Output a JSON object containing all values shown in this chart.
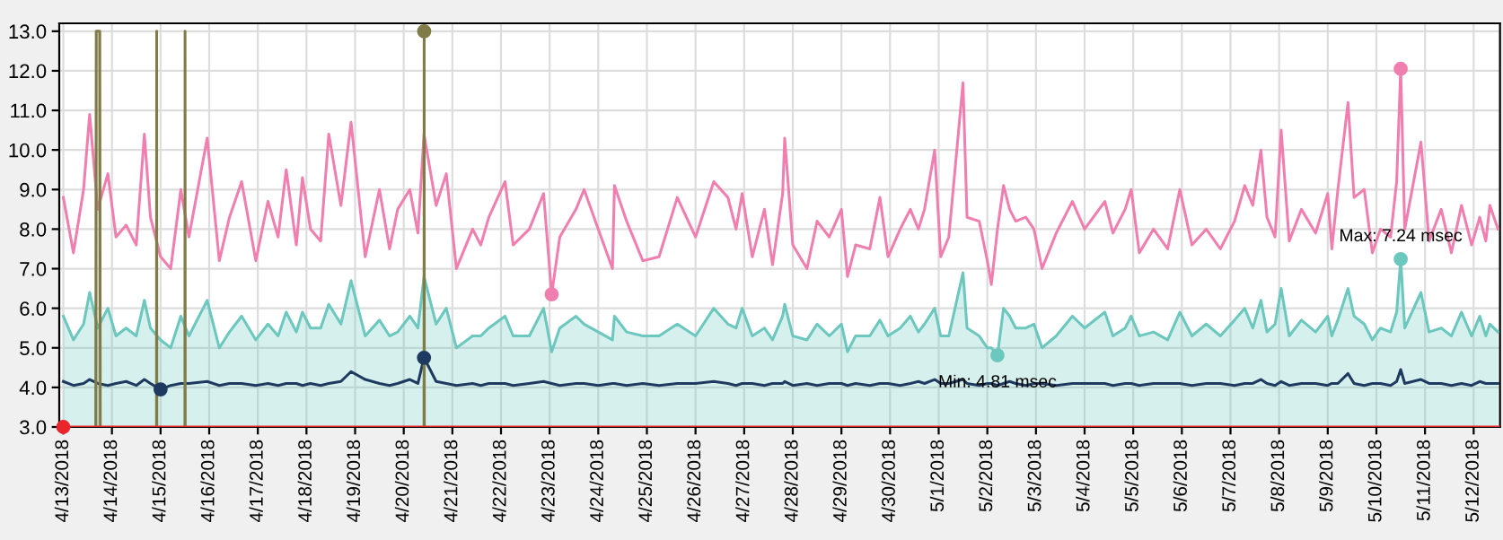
{
  "chart_data": {
    "type": "line",
    "xlim": [
      "2018-04-12T22:00",
      "2018-05-12T13:00"
    ],
    "ylim": [
      3,
      13.2
    ],
    "yticks": [
      {
        "value": 3,
        "label": "3.0"
      },
      {
        "value": 4,
        "label": "4.0"
      },
      {
        "value": 5,
        "label": "5.0"
      },
      {
        "value": 6,
        "label": "6.0"
      },
      {
        "value": 7,
        "label": "7.0"
      },
      {
        "value": 8,
        "label": "8.0"
      },
      {
        "value": 9,
        "label": "9.0"
      },
      {
        "value": 10,
        "label": "10.0"
      },
      {
        "value": 11,
        "label": "11.0"
      },
      {
        "value": 12,
        "label": "12.0"
      },
      {
        "value": 13,
        "label": "13.0"
      }
    ],
    "xticks": [
      {
        "value": "2018-04-13",
        "label": "4/13/2018"
      },
      {
        "value": "2018-04-14",
        "label": "4/14/2018"
      },
      {
        "value": "2018-04-15",
        "label": "4/15/2018"
      },
      {
        "value": "2018-04-16",
        "label": "4/16/2018"
      },
      {
        "value": "2018-04-17",
        "label": "4/17/2018"
      },
      {
        "value": "2018-04-18",
        "label": "4/18/2018"
      },
      {
        "value": "2018-04-19",
        "label": "4/19/2018"
      },
      {
        "value": "2018-04-20",
        "label": "4/20/2018"
      },
      {
        "value": "2018-04-21",
        "label": "4/21/2018"
      },
      {
        "value": "2018-04-22",
        "label": "4/22/2018"
      },
      {
        "value": "2018-04-23",
        "label": "4/23/2018"
      },
      {
        "value": "2018-04-24",
        "label": "4/24/2018"
      },
      {
        "value": "2018-04-25",
        "label": "4/25/2018"
      },
      {
        "value": "2018-04-26",
        "label": "4/26/2018"
      },
      {
        "value": "2018-04-27",
        "label": "4/27/2018"
      },
      {
        "value": "2018-04-28",
        "label": "4/28/2018"
      },
      {
        "value": "2018-04-29",
        "label": "4/29/2018"
      },
      {
        "value": "2018-04-30",
        "label": "4/30/2018"
      },
      {
        "value": "2018-05-01",
        "label": "5/1/2018"
      },
      {
        "value": "2018-05-02",
        "label": "5/2/2018"
      },
      {
        "value": "2018-05-03",
        "label": "5/3/2018"
      },
      {
        "value": "2018-05-04",
        "label": "5/4/2018"
      },
      {
        "value": "2018-05-05",
        "label": "5/5/2018"
      },
      {
        "value": "2018-05-06",
        "label": "5/6/2018"
      },
      {
        "value": "2018-05-07",
        "label": "5/7/2018"
      },
      {
        "value": "2018-05-08",
        "label": "5/8/2018"
      },
      {
        "value": "2018-05-09",
        "label": "5/9/2018"
      },
      {
        "value": "2018-05-10",
        "label": "5/10/2018"
      },
      {
        "value": "2018-05-11",
        "label": "5/11/2018"
      },
      {
        "value": "2018-05-12",
        "label": "5/12/2018"
      }
    ],
    "grid": true,
    "x": [
      "2018-04-13T00:00",
      "2018-04-13T05:00",
      "2018-04-13T10:00",
      "2018-04-13T13:00",
      "2018-04-13T17:00",
      "2018-04-13T22:00",
      "2018-04-14T02:00",
      "2018-04-14T07:00",
      "2018-04-14T12:00",
      "2018-04-14T16:00",
      "2018-04-14T19:00",
      "2018-04-15T00:00",
      "2018-04-15T05:00",
      "2018-04-15T10:00",
      "2018-04-15T14:00",
      "2018-04-15T23:00",
      "2018-04-16T05:00",
      "2018-04-16T10:00",
      "2018-04-16T16:00",
      "2018-04-16T23:00",
      "2018-04-17T05:00",
      "2018-04-17T10:00",
      "2018-04-17T14:00",
      "2018-04-17T19:00",
      "2018-04-17T22:00",
      "2018-04-18T02:00",
      "2018-04-18T07:00",
      "2018-04-18T11:00",
      "2018-04-18T17:00",
      "2018-04-18T22:00",
      "2018-04-19T05:00",
      "2018-04-19T12:00",
      "2018-04-19T17:00",
      "2018-04-19T21:00",
      "2018-04-20T03:00",
      "2018-04-20T07:00",
      "2018-04-20T10:00",
      "2018-04-20T16:00",
      "2018-04-20T21:00",
      "2018-04-21T02:00",
      "2018-04-21T10:00",
      "2018-04-21T14:00",
      "2018-04-21T18:00",
      "2018-04-22T02:00",
      "2018-04-22T06:00",
      "2018-04-22T14:00",
      "2018-04-22T21:00",
      "2018-04-23T01:00",
      "2018-04-23T05:00",
      "2018-04-23T13:00",
      "2018-04-23T17:00",
      "2018-04-24T00:00",
      "2018-04-24T07:00",
      "2018-04-24T08:00",
      "2018-04-24T14:00",
      "2018-04-24T22:00",
      "2018-04-25T06:00",
      "2018-04-25T15:00",
      "2018-04-26T00:00",
      "2018-04-26T09:00",
      "2018-04-26T16:00",
      "2018-04-26T20:00",
      "2018-04-26T23:00",
      "2018-04-27T04:00",
      "2018-04-27T10:00",
      "2018-04-27T14:00",
      "2018-04-27T19:00",
      "2018-04-27T20:00",
      "2018-04-28T00:00",
      "2018-04-28T07:00",
      "2018-04-28T12:00",
      "2018-04-28T18:00",
      "2018-04-29T00:00",
      "2018-04-29T03:00",
      "2018-04-29T07:00",
      "2018-04-29T14:00",
      "2018-04-29T19:00",
      "2018-04-29T23:00",
      "2018-04-30T05:00",
      "2018-04-30T10:00",
      "2018-04-30T14:00",
      "2018-04-30T17:00",
      "2018-04-30T22:00",
      "2018-05-01T01:00",
      "2018-05-01T05:00",
      "2018-05-01T12:00",
      "2018-05-01T14:00",
      "2018-05-01T20:00",
      "2018-05-02T00:00",
      "2018-05-02T02:00",
      "2018-05-02T05:00",
      "2018-05-02T08:00",
      "2018-05-02T11:00",
      "2018-05-02T14:00",
      "2018-05-02T19:00",
      "2018-05-02T23:00",
      "2018-05-03T03:00",
      "2018-05-03T10:00",
      "2018-05-03T18:00",
      "2018-05-04T00:00",
      "2018-05-04T10:00",
      "2018-05-04T14:00",
      "2018-05-04T20:00",
      "2018-05-04T23:00",
      "2018-05-05T03:00",
      "2018-05-05T10:00",
      "2018-05-05T17:00",
      "2018-05-05T23:00",
      "2018-05-06T05:00",
      "2018-05-06T12:00",
      "2018-05-06T19:00",
      "2018-05-07T02:00",
      "2018-05-07T07:00",
      "2018-05-07T11:00",
      "2018-05-07T15:00",
      "2018-05-07T18:00",
      "2018-05-07T22:00",
      "2018-05-08T01:00",
      "2018-05-08T05:00",
      "2018-05-08T11:00",
      "2018-05-08T18:00",
      "2018-05-09T00:00",
      "2018-05-09T02:00",
      "2018-05-09T05:00",
      "2018-05-09T10:00",
      "2018-05-09T13:00",
      "2018-05-09T18:00",
      "2018-05-09T22:00",
      "2018-05-10T02:00",
      "2018-05-10T07:00",
      "2018-05-10T10:00",
      "2018-05-10T12:00",
      "2018-05-10T14:00",
      "2018-05-10T22:00",
      "2018-05-11T02:00",
      "2018-05-11T08:00",
      "2018-05-11T13:00",
      "2018-05-11T18:00",
      "2018-05-11T23:00",
      "2018-05-12T03:00",
      "2018-05-12T06:00",
      "2018-05-12T08:00",
      "2018-05-12T12:00"
    ],
    "series": [
      {
        "type": "area",
        "color": "#6cc8be",
        "values": [
          5.8,
          5.2,
          5.6,
          6.4,
          5.5,
          6.0,
          5.3,
          5.5,
          5.3,
          6.2,
          5.5,
          5.2,
          5.0,
          5.8,
          5.3,
          6.2,
          5.0,
          5.4,
          5.8,
          5.2,
          5.6,
          5.3,
          5.9,
          5.4,
          5.9,
          5.5,
          5.5,
          6.1,
          5.6,
          6.7,
          5.3,
          5.7,
          5.3,
          5.4,
          5.8,
          5.5,
          6.8,
          5.6,
          6.0,
          5.0,
          5.3,
          5.3,
          5.5,
          5.8,
          5.3,
          5.3,
          6.0,
          4.9,
          5.5,
          5.8,
          5.6,
          5.4,
          5.2,
          5.8,
          5.4,
          5.3,
          5.3,
          5.6,
          5.3,
          6.0,
          5.6,
          5.5,
          6.0,
          5.3,
          5.5,
          5.2,
          5.8,
          6.1,
          5.3,
          5.2,
          5.6,
          5.3,
          5.6,
          4.9,
          5.3,
          5.3,
          5.7,
          5.3,
          5.5,
          5.8,
          5.4,
          5.6,
          6.0,
          5.3,
          5.3,
          6.9,
          5.5,
          5.3,
          5.0,
          5.0,
          4.81,
          6.0,
          5.8,
          5.5,
          5.5,
          5.6,
          5.0,
          5.3,
          5.8,
          5.5,
          5.9,
          5.3,
          5.5,
          5.8,
          5.3,
          5.4,
          5.2,
          5.9,
          5.3,
          5.6,
          5.3,
          5.7,
          6.0,
          5.5,
          6.2,
          5.4,
          5.6,
          6.5,
          5.3,
          5.7,
          5.4,
          5.8,
          5.3,
          5.7,
          6.5,
          5.8,
          5.6,
          5.2,
          5.5,
          5.4,
          5.9,
          7.24,
          5.5,
          6.4,
          5.4,
          5.5,
          5.3,
          5.9,
          5.3,
          5.8,
          5.3,
          5.6,
          5.4
        ]
      },
      {
        "color": "#f07fb0",
        "values": [
          8.8,
          7.4,
          9.0,
          10.9,
          8.5,
          9.4,
          7.8,
          8.1,
          7.6,
          10.4,
          8.3,
          7.3,
          7.0,
          9.0,
          7.8,
          10.3,
          7.2,
          8.3,
          9.2,
          7.2,
          8.7,
          7.8,
          9.5,
          7.6,
          9.3,
          8.0,
          7.7,
          10.4,
          8.6,
          10.7,
          7.3,
          9.0,
          7.5,
          8.5,
          9.0,
          7.9,
          10.4,
          8.6,
          9.4,
          7.0,
          8.0,
          7.6,
          8.3,
          9.2,
          7.6,
          8.0,
          8.9,
          6.35,
          7.8,
          8.5,
          9.0,
          8.0,
          7.0,
          9.1,
          8.2,
          7.2,
          7.3,
          8.8,
          7.8,
          9.2,
          8.8,
          8.0,
          8.9,
          7.3,
          8.5,
          7.1,
          8.9,
          10.3,
          7.6,
          7.0,
          8.2,
          7.8,
          8.5,
          6.8,
          7.6,
          7.5,
          8.8,
          7.3,
          8.0,
          8.5,
          8.0,
          8.5,
          10.0,
          7.3,
          7.8,
          11.7,
          8.3,
          8.2,
          7.2,
          6.6,
          8.0,
          9.1,
          8.5,
          8.2,
          8.3,
          8.0,
          7.0,
          7.9,
          8.7,
          8.0,
          8.7,
          7.9,
          8.5,
          9.0,
          7.4,
          8.0,
          7.5,
          9.0,
          7.6,
          8.0,
          7.5,
          8.2,
          9.1,
          8.6,
          10.0,
          8.3,
          7.8,
          10.5,
          7.7,
          8.5,
          7.9,
          8.9,
          7.5,
          9.0,
          11.2,
          8.8,
          9.0,
          7.4,
          8.0,
          7.8,
          9.2,
          12.05,
          8.0,
          10.2,
          7.7,
          8.5,
          7.4,
          8.6,
          7.6,
          8.3,
          7.7,
          8.6,
          8.0
        ]
      },
      {
        "color": "#1f3a60",
        "values": [
          4.15,
          4.05,
          4.1,
          4.2,
          4.1,
          4.05,
          4.1,
          4.15,
          4.05,
          4.2,
          4.1,
          3.95,
          4.05,
          4.1,
          4.1,
          4.15,
          4.05,
          4.1,
          4.1,
          4.05,
          4.1,
          4.05,
          4.1,
          4.1,
          4.05,
          4.1,
          4.05,
          4.1,
          4.15,
          4.4,
          4.2,
          4.1,
          4.05,
          4.1,
          4.2,
          4.1,
          4.75,
          4.15,
          4.1,
          4.05,
          4.1,
          4.05,
          4.1,
          4.1,
          4.05,
          4.1,
          4.15,
          4.1,
          4.05,
          4.1,
          4.1,
          4.05,
          4.1,
          4.1,
          4.05,
          4.1,
          4.05,
          4.1,
          4.1,
          4.15,
          4.1,
          4.05,
          4.1,
          4.1,
          4.05,
          4.1,
          4.1,
          4.15,
          4.05,
          4.1,
          4.05,
          4.1,
          4.1,
          4.05,
          4.1,
          4.05,
          4.1,
          4.1,
          4.05,
          4.1,
          4.15,
          4.1,
          4.2,
          4.1,
          4.1,
          4.2,
          4.1,
          4.05,
          4.1,
          4.1,
          4.05,
          4.1,
          4.15,
          4.1,
          4.05,
          4.1,
          4.1,
          4.05,
          4.1,
          4.1,
          4.1,
          4.05,
          4.1,
          4.1,
          4.05,
          4.1,
          4.1,
          4.1,
          4.05,
          4.1,
          4.1,
          4.05,
          4.1,
          4.1,
          4.2,
          4.1,
          4.05,
          4.15,
          4.05,
          4.1,
          4.1,
          4.05,
          4.1,
          4.1,
          4.35,
          4.1,
          4.05,
          4.1,
          4.1,
          4.05,
          4.15,
          4.45,
          4.1,
          4.2,
          4.1,
          4.1,
          4.05,
          4.1,
          4.05,
          4.15,
          4.1,
          4.1,
          4.1
        ]
      },
      {
        "type": "area",
        "color": "#807c48",
        "x": [
          "2018-04-13T16:00",
          "2018-04-13T16:15",
          "2018-04-13T18:00",
          "2018-04-13T18:15",
          "2018-04-14T00:00",
          "2018-04-14T22:00",
          "2018-04-14T22:05",
          "2018-04-14T22:10",
          "2018-04-15T00:00",
          "2018-04-15T12:00",
          "2018-04-15T12:05",
          "2018-04-15T12:10",
          "2018-04-16T00:00",
          "2018-04-20T10:00",
          "2018-04-20T10:05",
          "2018-04-20T10:10"
        ],
        "values": [
          3,
          13,
          13,
          3,
          null,
          3,
          13,
          3,
          null,
          3,
          13,
          3,
          null,
          3,
          13,
          3
        ]
      },
      {
        "type": "line",
        "color": "#e8262b",
        "x": [
          "2018-04-13T00:00",
          "2018-05-12T13:00"
        ],
        "values": [
          3,
          3
        ]
      },
      {
        "type": "scatter",
        "marker": "circle",
        "x": [
          "2018-04-23T01:00",
          "2018-05-10T12:00",
          "2018-05-02T05:00",
          "2018-05-10T12:00",
          "2018-04-15T00:00",
          "2018-04-20T10:00",
          "2018-04-20T10:05",
          "2018-04-13T00:00"
        ],
        "values": [
          6.35,
          12.05,
          4.81,
          7.24,
          3.95,
          4.75,
          13,
          3
        ],
        "colors": [
          "#f07fb0",
          "#f07fb0",
          "#6cc8be",
          "#6cc8be",
          "#1f3a60",
          "#1f3a60",
          "#807c48",
          "#e8262b"
        ]
      }
    ],
    "annotations": [
      {
        "text": "Max: 7.24 msec",
        "x": "2018-05-10T12:00",
        "y": 7.24
      },
      {
        "text": "Min: 4.81 msec",
        "x": "2018-05-02T05:00",
        "y": 4.81
      }
    ]
  }
}
